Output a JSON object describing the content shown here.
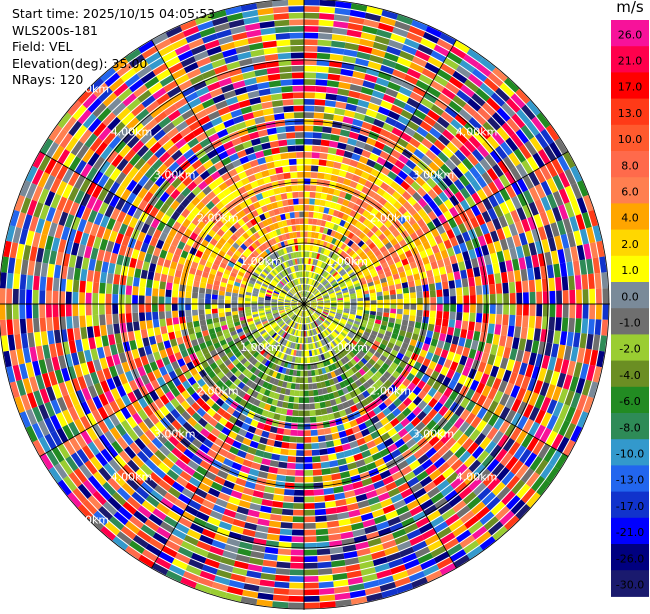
{
  "header": {
    "start_time": "Start time: 2025/10/15 04:05:53",
    "instrument": "WLS200s-181",
    "field": "Field: VEL",
    "elevation": "Elevation(deg): 35.00",
    "nrays": "NRays: 120"
  },
  "colorbar": {
    "unit": "m/s",
    "ticks": [
      "26.0",
      "21.0",
      "17.0",
      "13.0",
      "10.0",
      "8.0",
      "6.0",
      "4.0",
      "2.0",
      "1.0",
      "0.0",
      "-1.0",
      "-2.0",
      "-4.0",
      "-6.0",
      "-8.0",
      "-10.0",
      "-13.0",
      "-17.0",
      "-21.0",
      "-26.0",
      "-30.0"
    ],
    "colors": [
      "#f7129a",
      "#ff004c",
      "#ff0000",
      "#ff3a17",
      "#ff5a2e",
      "#ff6a4b",
      "#ff7f50",
      "#ffa500",
      "#ffd700",
      "#ffff00",
      "#7a8a99",
      "#6f6f6f",
      "#9acd32",
      "#6b8e23",
      "#228b22",
      "#2e8b57",
      "#3399cc",
      "#2266ee",
      "#1133cc",
      "#0000ff",
      "#000080",
      "#1a1a6e"
    ]
  },
  "chart_data": {
    "type": "heatmap",
    "projection": "polar PPI",
    "field": "VEL",
    "units": "m/s",
    "n_rays": 120,
    "range_rings_km": [
      1.0,
      2.0,
      3.0,
      4.0,
      5.0
    ],
    "ring_labels": {
      "upper_left": [
        "1.00km",
        "2.00km",
        "3.00km",
        "4.00km",
        "5.00km"
      ],
      "upper_right": [
        "1.00km",
        "2.00km",
        "3.00km",
        "4.00km"
      ],
      "lower_left": [
        "1.00km",
        "2.00km",
        "3.00km",
        "4.00km",
        "5.00km"
      ],
      "lower_right": [
        "1.00km",
        "2.00km",
        "3.00km",
        "4.00km"
      ]
    },
    "vmin": -30.0,
    "vmax": 26.0,
    "value_pattern": {
      "inner_km": {
        "range": [
          0,
          1.0
        ],
        "values": [
          -2.0,
          0.0,
          1.0
        ]
      },
      "north_band_km": {
        "range": [
          1.0,
          2.5
        ],
        "values": [
          1.0,
          2.0,
          4.0,
          6.0,
          8.0
        ]
      },
      "south_band_km": {
        "range": [
          1.0,
          2.0
        ],
        "values": [
          -1.0,
          -2.0,
          -4.0,
          -6.0
        ]
      },
      "outer_km": {
        "range": [
          2.5,
          5.7
        ],
        "values": "noise"
      }
    }
  }
}
